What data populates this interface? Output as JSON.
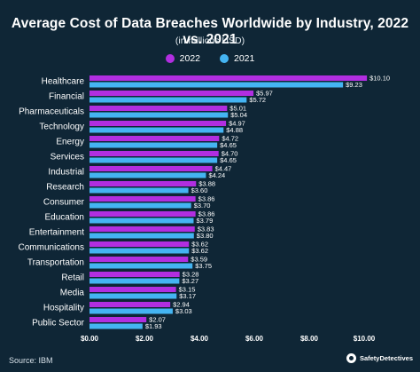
{
  "chart_data": {
    "type": "bar",
    "orientation": "horizontal",
    "title": "Average Cost of Data Breaches Worldwide by Industry, 2022 vs. 2021",
    "subtitle": "(in millions USD)",
    "categories": [
      "Healthcare",
      "Financial",
      "Pharmaceuticals",
      "Technology",
      "Energy",
      "Services",
      "Industrial",
      "Research",
      "Consumer",
      "Education",
      "Entertainment",
      "Communications",
      "Transportation",
      "Retail",
      "Media",
      "Hospitality",
      "Public Sector"
    ],
    "series": [
      {
        "name": "2022",
        "color": "#b12ee0",
        "values": [
          10.1,
          5.97,
          5.01,
          4.97,
          4.72,
          4.7,
          4.47,
          3.88,
          3.86,
          3.86,
          3.83,
          3.62,
          3.59,
          3.28,
          3.15,
          2.94,
          2.07
        ],
        "labels": [
          "$10.10",
          "$5.97",
          "$5.01",
          "$4.97",
          "$4.72",
          "$4.70",
          "$4.47",
          "$3.88",
          "$3.86",
          "$3.86",
          "$3.83",
          "$3.62",
          "$3.59",
          "$3.28",
          "$3.15",
          "$2.94",
          "$2.07"
        ]
      },
      {
        "name": "2021",
        "color": "#44b4f2",
        "values": [
          9.23,
          5.72,
          5.04,
          4.88,
          4.65,
          4.65,
          4.24,
          3.6,
          3.7,
          3.79,
          3.8,
          3.62,
          3.75,
          3.27,
          3.17,
          3.03,
          1.93
        ],
        "labels": [
          "$9.23",
          "$5.72",
          "$5.04",
          "$4.88",
          "$4.65",
          "$4.65",
          "$4.24",
          "$3.60",
          "$3.70",
          "$3.79",
          "$3.80",
          "$3.62",
          "$3.75",
          "$3.27",
          "$3.17",
          "$3.03",
          "$1.93"
        ]
      }
    ],
    "xlim": [
      0,
      10
    ],
    "xticks": [
      "$0.00",
      "$2.00",
      "$4.00",
      "$6.00",
      "$8.00",
      "$10.00"
    ],
    "legend_position": "top-center",
    "grid": false
  },
  "footer": {
    "source": "Source: IBM",
    "brand": "SafetyDetectives"
  }
}
